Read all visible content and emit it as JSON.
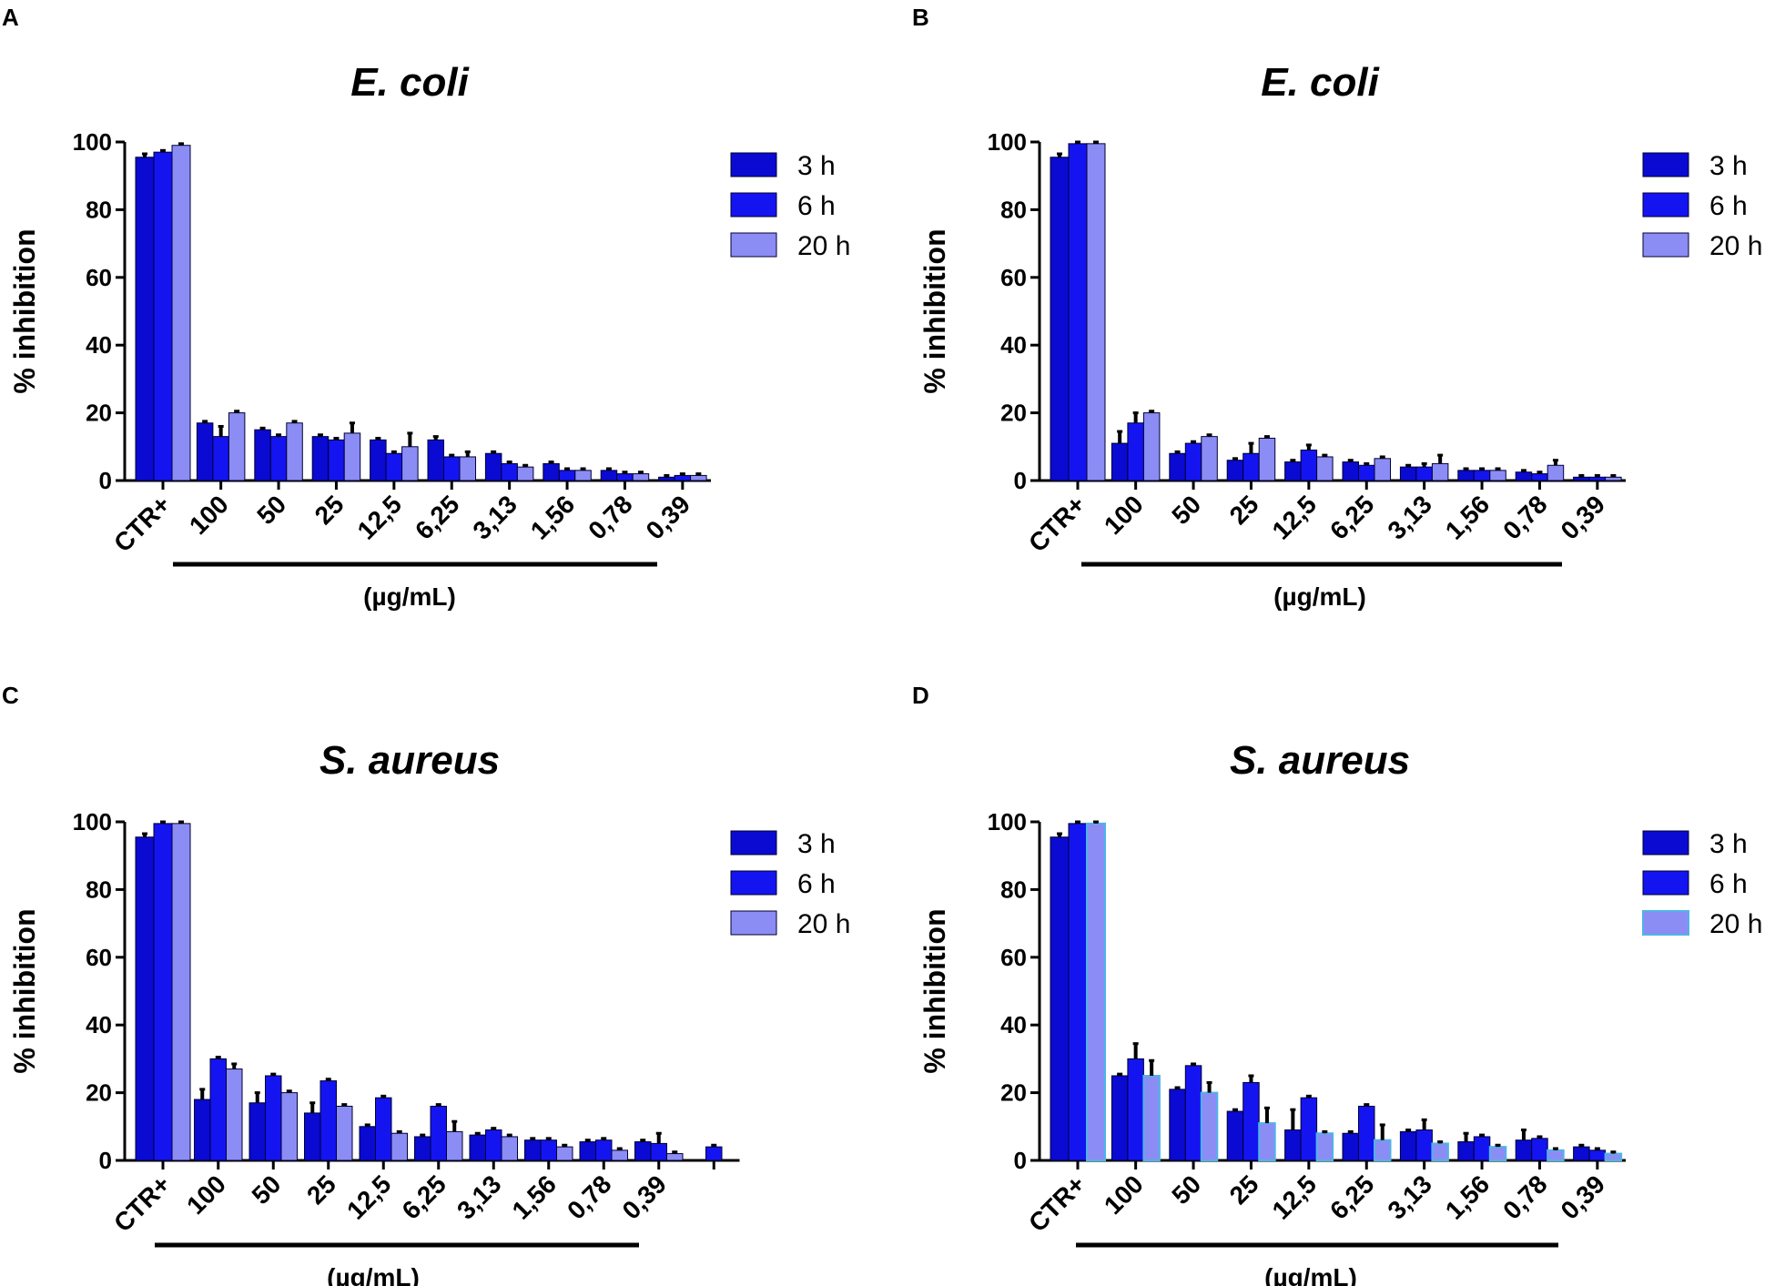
{
  "chart_data": [
    {
      "panel": "A",
      "type": "bar",
      "title": "E. coli",
      "ylabel": "% inhibition",
      "xlabel": "(µg/mL)",
      "ylim": [
        0,
        100
      ],
      "yticks": [
        0,
        20,
        40,
        60,
        80,
        100
      ],
      "categories": [
        "CTR+",
        "100",
        "50",
        "25",
        "12,5",
        "6,25",
        "3,13",
        "1,56",
        "0,78",
        "0,39"
      ],
      "legend_position": "top-right",
      "series": [
        {
          "name": "3 h",
          "color": "#0a0ad2",
          "values": [
            95.5,
            17,
            15,
            13,
            12,
            12,
            8,
            5,
            3,
            1
          ],
          "errors": [
            1,
            0.5,
            0.5,
            0.5,
            0.5,
            1,
            0.5,
            0.5,
            0.5,
            0.5
          ]
        },
        {
          "name": "6 h",
          "color": "#1414f0",
          "values": [
            97,
            13,
            13,
            12,
            8,
            7,
            5,
            3,
            2,
            1.5
          ],
          "errors": [
            0.5,
            3,
            0.5,
            0.5,
            0.5,
            0.5,
            0.5,
            0.5,
            0.5,
            0.5
          ]
        },
        {
          "name": "20 h",
          "color": "#8c8cf5",
          "values": [
            99,
            20,
            17,
            14,
            10,
            7,
            4,
            3,
            2,
            1.5
          ],
          "errors": [
            0.5,
            0.5,
            0.5,
            3,
            4,
            1.5,
            0.5,
            0.5,
            0.5,
            0.5
          ]
        }
      ]
    },
    {
      "panel": "B",
      "type": "bar",
      "title": "E. coli",
      "ylabel": "% inhibition",
      "xlabel": "(µg/mL)",
      "ylim": [
        0,
        100
      ],
      "yticks": [
        0,
        20,
        40,
        60,
        80,
        100
      ],
      "categories": [
        "CTR+",
        "100",
        "50",
        "25",
        "12,5",
        "6,25",
        "3,13",
        "1,56",
        "0,78",
        "0,39"
      ],
      "legend_position": "top-right",
      "series": [
        {
          "name": "3 h",
          "color": "#0a0ad2",
          "values": [
            95.5,
            11,
            8,
            6,
            5.5,
            5.5,
            4,
            3,
            2.5,
            1
          ],
          "errors": [
            1,
            3.5,
            0.5,
            0.5,
            0.5,
            0.5,
            0.5,
            0.5,
            0.5,
            0.5
          ]
        },
        {
          "name": "6 h",
          "color": "#1414f0",
          "values": [
            99.5,
            17,
            11,
            8,
            9,
            4.5,
            4,
            3,
            2,
            1
          ],
          "errors": [
            0.5,
            3,
            0.5,
            3,
            1.5,
            0.5,
            1,
            0.5,
            0.5,
            0.5
          ]
        },
        {
          "name": "20 h",
          "color": "#8c8cf5",
          "values": [
            99.5,
            20,
            13,
            12.5,
            7,
            6.5,
            5,
            3,
            4.5,
            1
          ],
          "errors": [
            0.5,
            0.5,
            0.5,
            0.5,
            0.5,
            0.5,
            2.5,
            0.5,
            1.5,
            0.5
          ]
        }
      ]
    },
    {
      "panel": "C",
      "type": "bar",
      "title": "S. aureus",
      "ylabel": "% inhibition",
      "xlabel": "(µg/mL)",
      "ylim": [
        0,
        100
      ],
      "yticks": [
        0,
        20,
        40,
        60,
        80,
        100
      ],
      "categories": [
        "CTR+",
        "100",
        "50",
        "25",
        "12,5",
        "6,25",
        "3,13",
        "1,56",
        "0,78",
        "0,39",
        ""
      ],
      "legend_position": "top-right",
      "series": [
        {
          "name": "3 h",
          "color": "#0a0ad2",
          "values": [
            95.5,
            18,
            17,
            14,
            10,
            7,
            7.5,
            6,
            5.5,
            5.5,
            null
          ],
          "errors": [
            1,
            3,
            3,
            3,
            0.5,
            0.5,
            0.5,
            0.5,
            0.5,
            0.5,
            0
          ]
        },
        {
          "name": "6 h",
          "color": "#1414f0",
          "values": [
            99.5,
            30,
            25,
            23.5,
            18.5,
            16,
            9,
            6,
            6,
            5,
            4
          ],
          "errors": [
            0.5,
            0.5,
            0.5,
            0.5,
            0.5,
            0.5,
            0.5,
            0.5,
            0.5,
            3,
            0.5
          ]
        },
        {
          "name": "20 h",
          "color": "#8c8cf5",
          "values": [
            99.5,
            27,
            20,
            16,
            8,
            8.5,
            7,
            4,
            3,
            2,
            null
          ],
          "errors": [
            0.5,
            1.5,
            0.5,
            0.5,
            0.5,
            3,
            0.5,
            0.5,
            0.5,
            0.5,
            0
          ]
        }
      ]
    },
    {
      "panel": "D",
      "type": "bar",
      "title": "S. aureus",
      "ylabel": "% inhibition",
      "xlabel": "(µg/mL)",
      "ylim": [
        0,
        100
      ],
      "yticks": [
        0,
        20,
        40,
        60,
        80,
        100
      ],
      "categories": [
        "CTR+",
        "100",
        "50",
        "25",
        "12,5",
        "6,25",
        "3,13",
        "1,56",
        "0,78",
        "0,39"
      ],
      "legend_position": "top-right",
      "series": [
        {
          "name": "3 h",
          "color": "#0a0ad2",
          "values": [
            95.5,
            25,
            21,
            14.5,
            9,
            8,
            8.5,
            5.5,
            6,
            4
          ],
          "errors": [
            1,
            0.5,
            0.5,
            0.5,
            6,
            0.5,
            0.5,
            2.5,
            3,
            0.5
          ]
        },
        {
          "name": "6 h",
          "color": "#1414f0",
          "values": [
            99.5,
            30,
            28,
            23,
            18.5,
            16,
            9,
            7,
            6.5,
            3
          ],
          "errors": [
            0.5,
            4.5,
            0.5,
            2,
            0.5,
            0.5,
            3,
            0.5,
            0.5,
            0.5
          ]
        },
        {
          "name": "20 h",
          "color": "#8c8cf5",
          "edge": "#4fb4e6",
          "values": [
            99.5,
            25,
            20,
            11,
            8,
            6,
            5,
            4,
            3,
            2
          ],
          "errors": [
            0.5,
            4.5,
            3,
            4.5,
            0.5,
            4.5,
            0.5,
            0.5,
            0.5,
            0.5
          ]
        }
      ]
    }
  ]
}
